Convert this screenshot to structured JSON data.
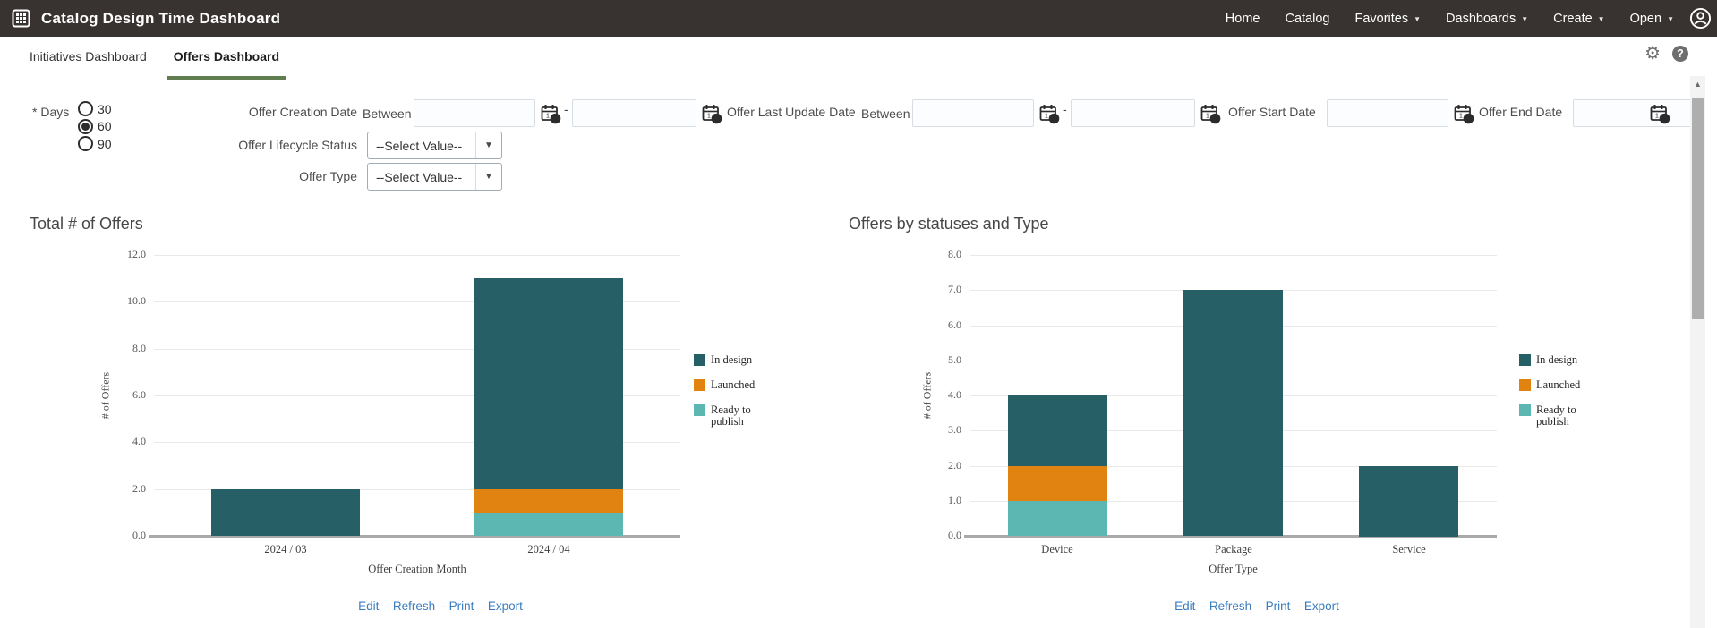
{
  "header": {
    "title": "Catalog Design Time Dashboard",
    "nav_items": [
      {
        "label": "Home",
        "has_dropdown": false
      },
      {
        "label": "Catalog",
        "has_dropdown": false
      },
      {
        "label": "Favorites",
        "has_dropdown": true
      },
      {
        "label": "Dashboards",
        "has_dropdown": true
      },
      {
        "label": "Create",
        "has_dropdown": true
      },
      {
        "label": "Open",
        "has_dropdown": true
      }
    ]
  },
  "tabs": [
    {
      "label": "Initiatives Dashboard",
      "active": false
    },
    {
      "label": "Offers Dashboard",
      "active": true
    }
  ],
  "filters": {
    "days": {
      "label": "* Days",
      "options": [
        {
          "label": "30",
          "selected": false
        },
        {
          "label": "60",
          "selected": true
        },
        {
          "label": "90",
          "selected": false
        }
      ]
    },
    "offer_creation_date": {
      "label": "Offer Creation Date",
      "prefix": "Between",
      "from": "",
      "to": ""
    },
    "offer_last_update_date": {
      "label": "Offer Last Update Date",
      "prefix": "Between",
      "from": "",
      "to": ""
    },
    "offer_start_date": {
      "label": "Offer Start Date",
      "value": ""
    },
    "offer_end_date": {
      "label": "Offer End Date",
      "value": ""
    },
    "offer_lifecycle_status": {
      "label": "Offer Lifecycle Status",
      "value": "--Select Value--"
    },
    "offer_type": {
      "label": "Offer Type",
      "value": "--Select Value--"
    },
    "range_separator": "-"
  },
  "chart_data": [
    {
      "type": "bar",
      "stacked": true,
      "title": "Total # of Offers",
      "categories": [
        "2024 / 03",
        "2024 / 04"
      ],
      "series": [
        {
          "name": "In design",
          "color": "#265f66",
          "values": [
            2,
            9
          ]
        },
        {
          "name": "Launched",
          "color": "#e08310",
          "values": [
            0,
            1
          ]
        },
        {
          "name": "Ready to publish",
          "color": "#5cb7b2",
          "values": [
            0,
            1
          ]
        }
      ],
      "bar_totals": [
        2,
        11
      ],
      "xlabel": "Offer Creation Month",
      "ylabel": "# of Offers",
      "ylim": [
        0,
        12
      ],
      "ytick_step": 2,
      "grid": true,
      "legend_position": "right"
    },
    {
      "type": "bar",
      "stacked": true,
      "title": "Offers by statuses and Type",
      "categories": [
        "Device",
        "Package",
        "Service"
      ],
      "series": [
        {
          "name": "In design",
          "color": "#265f66",
          "values": [
            2,
            7,
            2
          ]
        },
        {
          "name": "Launched",
          "color": "#e08310",
          "values": [
            1,
            0,
            0
          ]
        },
        {
          "name": "Ready to publish",
          "color": "#5cb7b2",
          "values": [
            1,
            0,
            0
          ]
        }
      ],
      "bar_totals": [
        4,
        7,
        2
      ],
      "xlabel": "Offer Type",
      "ylabel": "# of Offers",
      "ylim": [
        0,
        8
      ],
      "ytick_step": 1,
      "grid": true,
      "legend_position": "right"
    }
  ],
  "chart_links": {
    "items": [
      "Edit",
      "Refresh",
      "Print",
      "Export"
    ],
    "separator": "-"
  },
  "colors": {
    "header_bg": "#383330",
    "active_tab_underline": "#5f7d4f",
    "link": "#3a7dbf",
    "series_in_design": "#265f66",
    "series_launched": "#e08310",
    "series_ready_to_publish": "#5cb7b2"
  }
}
